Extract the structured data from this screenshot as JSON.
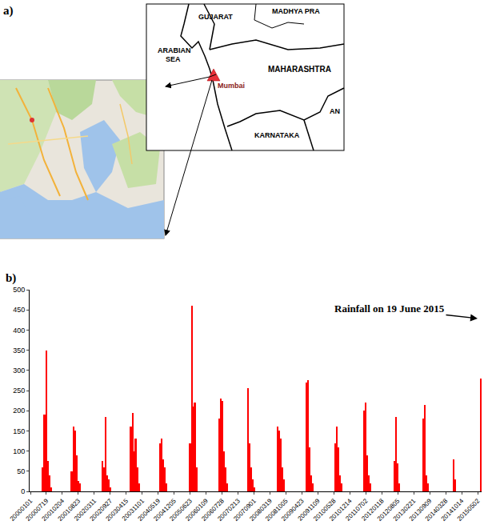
{
  "map": {
    "panel_label": "a)",
    "labels": [
      [
        "GUJARAT"
      ],
      [
        "MADHYA PRA"
      ],
      [
        "ARABIAN",
        "SEA"
      ],
      [
        "MAHARASHTRA"
      ],
      [
        "Mumbai"
      ],
      [
        "KARNATAKA"
      ],
      [
        "AN"
      ]
    ]
  },
  "chart_data": {
    "type": "bar",
    "panel_label": "b)",
    "categories": [
      "20000101",
      null,
      null,
      null,
      null,
      null,
      null,
      null,
      null,
      null,
      "20000719",
      null,
      null,
      null,
      null,
      null,
      null,
      null,
      null,
      null,
      "20010204",
      null,
      null,
      null,
      null,
      null,
      null,
      null,
      null,
      null,
      "20010823",
      null,
      null,
      null,
      null,
      null,
      null,
      null,
      null,
      null,
      "20020311",
      null,
      null,
      null,
      null,
      null,
      null,
      null,
      null,
      null,
      "20020927",
      null,
      null,
      null,
      null,
      null,
      null,
      null,
      null,
      null,
      "20030415",
      null,
      null,
      null,
      null,
      null,
      null,
      null,
      null,
      null,
      "20031101",
      null,
      null,
      null,
      null,
      null,
      null,
      null,
      null,
      null,
      "20040519",
      null,
      null,
      null,
      null,
      null,
      null,
      null,
      null,
      null,
      "20041205",
      null,
      null,
      null,
      null,
      null,
      null,
      null,
      null,
      null,
      "20050623",
      null,
      null,
      null,
      null,
      null,
      null,
      null,
      null,
      null,
      "20060109",
      null,
      null,
      null,
      null,
      null,
      null,
      null,
      null,
      null,
      "20060728",
      null,
      null,
      null,
      null,
      null,
      null,
      null,
      null,
      null,
      "20070213",
      null,
      null,
      null,
      null,
      null,
      null,
      null,
      null,
      null,
      "20070901",
      null,
      null,
      null,
      null,
      null,
      null,
      null,
      null,
      null,
      "20080319",
      null,
      null,
      null,
      null,
      null,
      null,
      null,
      null,
      null,
      "20081005",
      null,
      null,
      null,
      null,
      null,
      null,
      null,
      null,
      null,
      "20090423",
      null,
      null,
      null,
      null,
      null,
      null,
      null,
      null,
      null,
      "20091109",
      null,
      null,
      null,
      null,
      null,
      null,
      null,
      null,
      null,
      "20100528",
      null,
      null,
      null,
      null,
      null,
      null,
      null,
      null,
      null,
      "20101214",
      null,
      null,
      null,
      null,
      null,
      null,
      null,
      null,
      null,
      "20110702",
      null,
      null,
      null,
      null,
      null,
      null,
      null,
      null,
      null,
      "20120118",
      null,
      null,
      null,
      null,
      null,
      null,
      null,
      null,
      null,
      "20120805",
      null,
      null,
      null,
      null,
      null,
      null,
      null,
      null,
      null,
      "20130221",
      null,
      null,
      null,
      null,
      null,
      null,
      null,
      null,
      null,
      "20130909",
      null,
      null,
      null,
      null,
      null,
      null,
      null,
      null,
      null,
      "20140328",
      null,
      null,
      null,
      null,
      null,
      null,
      null,
      null,
      null,
      "20141014",
      null,
      null,
      null,
      null,
      null,
      null,
      null,
      null,
      null,
      "20150502",
      null,
      null
    ],
    "values": [
      0,
      0,
      0,
      0,
      0,
      0,
      0,
      0,
      60,
      190,
      350,
      75,
      40,
      10,
      0,
      0,
      0,
      0,
      0,
      0,
      0,
      0,
      0,
      0,
      0,
      0,
      50,
      160,
      150,
      90,
      25,
      20,
      0,
      0,
      0,
      0,
      0,
      0,
      0,
      0,
      0,
      0,
      0,
      0,
      0,
      75,
      60,
      185,
      40,
      30,
      10,
      0,
      0,
      0,
      0,
      0,
      0,
      0,
      0,
      0,
      0,
      0,
      0,
      160,
      195,
      100,
      130,
      60,
      20,
      0,
      0,
      0,
      0,
      0,
      0,
      0,
      0,
      0,
      0,
      0,
      0,
      120,
      130,
      80,
      60,
      20,
      0,
      0,
      0,
      0,
      0,
      0,
      0,
      0,
      0,
      0,
      0,
      0,
      0,
      0,
      120,
      460,
      210,
      220,
      60,
      0,
      0,
      0,
      0,
      0,
      0,
      0,
      0,
      0,
      0,
      0,
      0,
      0,
      180,
      230,
      225,
      100,
      60,
      20,
      0,
      0,
      0,
      0,
      0,
      0,
      0,
      0,
      0,
      0,
      0,
      0,
      255,
      120,
      60,
      30,
      10,
      0,
      0,
      0,
      0,
      0,
      0,
      0,
      0,
      0,
      0,
      0,
      0,
      0,
      0,
      160,
      150,
      130,
      60,
      30,
      0,
      0,
      0,
      0,
      0,
      0,
      0,
      0,
      0,
      0,
      0,
      0,
      0,
      270,
      275,
      110,
      40,
      20,
      0,
      0,
      0,
      0,
      0,
      0,
      0,
      0,
      0,
      0,
      0,
      0,
      0,
      120,
      160,
      110,
      40,
      20,
      0,
      0,
      0,
      0,
      0,
      0,
      0,
      0,
      0,
      0,
      0,
      0,
      0,
      200,
      220,
      90,
      40,
      20,
      0,
      0,
      0,
      0,
      0,
      0,
      0,
      0,
      0,
      0,
      0,
      0,
      0,
      0,
      75,
      185,
      70,
      20,
      0,
      0,
      0,
      0,
      0,
      0,
      0,
      0,
      0,
      0,
      0,
      0,
      0,
      0,
      180,
      215,
      40,
      20,
      0,
      0,
      0,
      0,
      0,
      0,
      0,
      0,
      0,
      0,
      0,
      0,
      0,
      0,
      0,
      80,
      30,
      0,
      0,
      0,
      0,
      0,
      0,
      0,
      0,
      0,
      0,
      0,
      0,
      0,
      0,
      0,
      280
    ],
    "color": "#ff0000",
    "ylim": [
      0,
      500
    ],
    "yticks": [
      0,
      50,
      100,
      150,
      200,
      250,
      300,
      350,
      400,
      450,
      500
    ],
    "grid": false,
    "annotations": [
      {
        "text": "Rainfall on 19 June 2015"
      }
    ]
  }
}
